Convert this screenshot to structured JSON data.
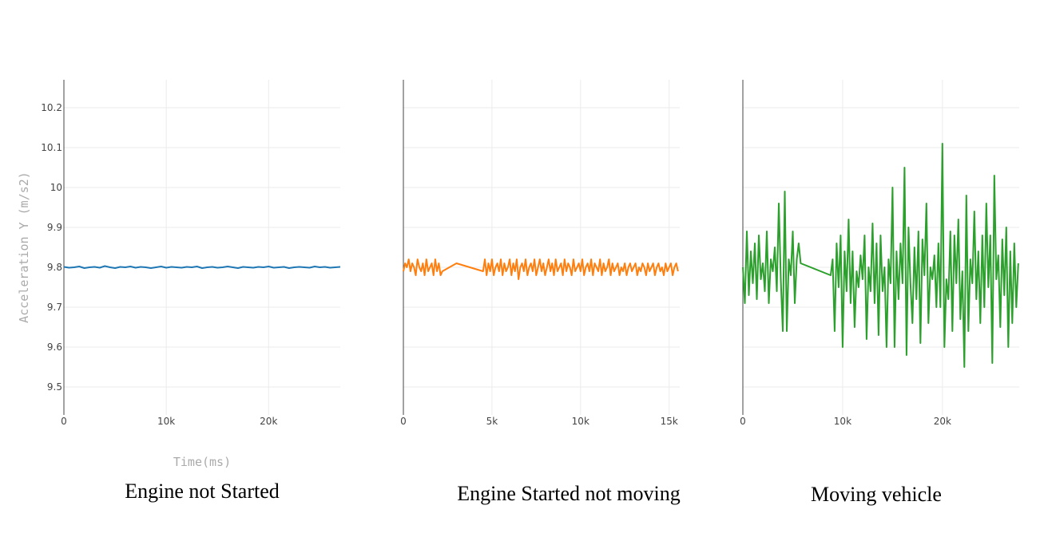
{
  "chart_data": [
    {
      "type": "line",
      "caption": "Engine not Started",
      "xlabel": "Time(ms)",
      "ylabel": "Acceleration Y (m/s2)",
      "xlim": [
        0,
        27000
      ],
      "ylim": [
        9.43,
        10.27
      ],
      "xticks": [
        {
          "v": 0,
          "label": "0"
        },
        {
          "v": 10000,
          "label": "10k"
        },
        {
          "v": 20000,
          "label": "20k"
        }
      ],
      "yticks": [
        {
          "v": 9.5,
          "label": "9.5"
        },
        {
          "v": 9.6,
          "label": "9.6"
        },
        {
          "v": 9.7,
          "label": "9.7"
        },
        {
          "v": 9.8,
          "label": "9.8"
        },
        {
          "v": 9.9,
          "label": "9.9"
        },
        {
          "v": 10,
          "label": "10"
        },
        {
          "v": 10.1,
          "label": "10.1"
        },
        {
          "v": 10.2,
          "label": "10.2"
        }
      ],
      "color": "#1f77b4",
      "series": [
        {
          "x": [
            0,
            500,
            1000,
            1500,
            2000,
            2500,
            3000,
            3500,
            4000,
            4500,
            5000,
            5500,
            6000,
            6500,
            7000,
            7500,
            8000,
            8500,
            9000,
            9500,
            10000,
            10500,
            11000,
            11500,
            12000,
            12500,
            13000,
            13500,
            14000,
            14500,
            15000,
            15500,
            16000,
            16500,
            17000,
            17500,
            18000,
            18500,
            19000,
            19500,
            20000,
            20500,
            21000,
            21500,
            22000,
            22500,
            23000,
            23500,
            24000,
            24500,
            25000,
            25500,
            26000,
            26500,
            27000
          ],
          "y": [
            9.801,
            9.799,
            9.8,
            9.802,
            9.798,
            9.8,
            9.801,
            9.799,
            9.803,
            9.8,
            9.798,
            9.801,
            9.8,
            9.802,
            9.799,
            9.801,
            9.8,
            9.798,
            9.8,
            9.802,
            9.799,
            9.801,
            9.8,
            9.799,
            9.801,
            9.8,
            9.802,
            9.798,
            9.8,
            9.801,
            9.799,
            9.8,
            9.802,
            9.8,
            9.798,
            9.801,
            9.8,
            9.799,
            9.801,
            9.8,
            9.802,
            9.799,
            9.8,
            9.801,
            9.798,
            9.8,
            9.801,
            9.8,
            9.799,
            9.802,
            9.8,
            9.801,
            9.799,
            9.8,
            9.801
          ]
        }
      ]
    },
    {
      "type": "line",
      "caption": "Engine Started not moving",
      "xlim": [
        0,
        15600
      ],
      "ylim": [
        9.43,
        10.27
      ],
      "xticks": [
        {
          "v": 0,
          "label": "0"
        },
        {
          "v": 5000,
          "label": "5k"
        },
        {
          "v": 10000,
          "label": "10k"
        },
        {
          "v": 15000,
          "label": "15k"
        }
      ],
      "color": "#ff7f0e",
      "series": [
        {
          "x": [
            0,
            100,
            200,
            300,
            400,
            500,
            600,
            700,
            800,
            900,
            1000,
            1100,
            1200,
            1300,
            1400,
            1500,
            1600,
            1700,
            1800,
            1900,
            2000,
            2100,
            2200,
            3000,
            4500,
            4600,
            4700,
            4800,
            4900,
            5000,
            5100,
            5200,
            5300,
            5400,
            5500,
            5600,
            5700,
            5800,
            5900,
            6000,
            6100,
            6200,
            6300,
            6400,
            6500,
            6600,
            6700,
            6800,
            6900,
            7000,
            7100,
            7200,
            7300,
            7400,
            7500,
            7600,
            7700,
            7800,
            7900,
            8000,
            8100,
            8200,
            8300,
            8400,
            8500,
            8600,
            8700,
            8800,
            8900,
            9000,
            9100,
            9200,
            9300,
            9400,
            9500,
            9600,
            9700,
            9800,
            9900,
            10000,
            10100,
            10200,
            10300,
            10400,
            10500,
            10600,
            10700,
            10800,
            10900,
            11000,
            11100,
            11200,
            11300,
            11400,
            11500,
            11600,
            11700,
            11800,
            11900,
            12000,
            12100,
            12200,
            12300,
            12400,
            12500,
            12600,
            12700,
            12800,
            12900,
            13000,
            13100,
            13200,
            13300,
            13400,
            13500,
            13600,
            13700,
            13800,
            13900,
            14000,
            14100,
            14200,
            14300,
            14400,
            14500,
            14600,
            14700,
            14800,
            14900,
            15000,
            15100,
            15200,
            15300,
            15400,
            15500
          ],
          "y": [
            9.79,
            9.81,
            9.8,
            9.82,
            9.79,
            9.81,
            9.8,
            9.78,
            9.82,
            9.8,
            9.79,
            9.81,
            9.78,
            9.82,
            9.79,
            9.8,
            9.81,
            9.78,
            9.82,
            9.79,
            9.81,
            9.78,
            9.79,
            9.81,
            9.79,
            9.82,
            9.78,
            9.81,
            9.79,
            9.82,
            9.78,
            9.8,
            9.81,
            9.79,
            9.82,
            9.78,
            9.81,
            9.79,
            9.8,
            9.82,
            9.78,
            9.81,
            9.79,
            9.82,
            9.77,
            9.8,
            9.81,
            9.79,
            9.82,
            9.78,
            9.8,
            9.81,
            9.79,
            9.82,
            9.78,
            9.8,
            9.82,
            9.79,
            9.81,
            9.78,
            9.8,
            9.82,
            9.79,
            9.81,
            9.78,
            9.82,
            9.79,
            9.8,
            9.81,
            9.78,
            9.82,
            9.79,
            9.81,
            9.8,
            9.78,
            9.82,
            9.79,
            9.8,
            9.81,
            9.79,
            9.82,
            9.78,
            9.8,
            9.81,
            9.79,
            9.82,
            9.78,
            9.81,
            9.8,
            9.79,
            9.82,
            9.78,
            9.81,
            9.79,
            9.8,
            9.82,
            9.78,
            9.81,
            9.79,
            9.8,
            9.81,
            9.78,
            9.8,
            9.79,
            9.81,
            9.78,
            9.8,
            9.81,
            9.79,
            9.8,
            9.81,
            9.78,
            9.8,
            9.79,
            9.81,
            9.8,
            9.78,
            9.81,
            9.79,
            9.8,
            9.81,
            9.78,
            9.8,
            9.81,
            9.79,
            9.8,
            9.78,
            9.81,
            9.79,
            9.8,
            9.81,
            9.78,
            9.8,
            9.81,
            9.79
          ]
        }
      ]
    },
    {
      "type": "line",
      "caption": "Moving vehicle",
      "xlim": [
        0,
        27700
      ],
      "ylim": [
        9.43,
        10.27
      ],
      "xticks": [
        {
          "v": 0,
          "label": "0"
        },
        {
          "v": 10000,
          "label": "10k"
        },
        {
          "v": 20000,
          "label": "20k"
        }
      ],
      "color": "#2ca02c",
      "series": [
        {
          "x": [
            0,
            200,
            400,
            600,
            800,
            1000,
            1200,
            1400,
            1600,
            1800,
            2000,
            2200,
            2400,
            2600,
            2800,
            3000,
            3200,
            3400,
            3600,
            3800,
            4000,
            4200,
            4400,
            4600,
            4800,
            5000,
            5200,
            5400,
            5600,
            5800,
            8800,
            9000,
            9200,
            9400,
            9600,
            9800,
            10000,
            10200,
            10400,
            10600,
            10800,
            11000,
            11200,
            11400,
            11600,
            11800,
            12000,
            12200,
            12400,
            12600,
            12800,
            13000,
            13200,
            13400,
            13600,
            13800,
            14000,
            14200,
            14400,
            14600,
            14800,
            15000,
            15200,
            15400,
            15600,
            15800,
            16000,
            16200,
            16400,
            16600,
            16800,
            17000,
            17200,
            17400,
            17600,
            17800,
            18000,
            18200,
            18400,
            18600,
            18800,
            19000,
            19200,
            19400,
            19600,
            19800,
            20000,
            20200,
            20400,
            20600,
            20800,
            21000,
            21200,
            21400,
            21600,
            21800,
            22000,
            22200,
            22400,
            22600,
            22800,
            23000,
            23200,
            23400,
            23600,
            23800,
            24000,
            24200,
            24400,
            24600,
            24800,
            25000,
            25200,
            25400,
            25600,
            25800,
            26000,
            26200,
            26400,
            26600,
            26800,
            27000,
            27200,
            27400,
            27600
          ],
          "y": [
            9.8,
            9.71,
            9.89,
            9.73,
            9.84,
            9.76,
            9.86,
            9.72,
            9.88,
            9.77,
            9.81,
            9.74,
            9.89,
            9.71,
            9.82,
            9.79,
            9.85,
            9.74,
            9.96,
            9.77,
            9.64,
            9.99,
            9.64,
            9.82,
            9.78,
            9.89,
            9.71,
            9.82,
            9.86,
            9.81,
            9.78,
            9.82,
            9.64,
            9.86,
            9.75,
            9.88,
            9.6,
            9.84,
            9.74,
            9.92,
            9.71,
            9.84,
            9.65,
            9.79,
            9.75,
            9.83,
            9.77,
            9.88,
            9.62,
            9.8,
            9.74,
            9.91,
            9.71,
            9.86,
            9.63,
            9.88,
            9.74,
            9.8,
            9.6,
            9.82,
            9.76,
            10.0,
            9.6,
            9.84,
            9.72,
            9.86,
            9.76,
            10.05,
            9.58,
            9.9,
            9.76,
            9.66,
            9.85,
            9.72,
            9.89,
            9.61,
            9.87,
            9.78,
            9.96,
            9.66,
            9.8,
            9.77,
            9.83,
            9.7,
            9.86,
            9.7,
            10.11,
            9.6,
            9.77,
            9.72,
            9.89,
            9.64,
            9.88,
            9.76,
            9.92,
            9.67,
            9.79,
            9.55,
            9.98,
            9.64,
            9.82,
            9.76,
            9.94,
            9.72,
            9.84,
            9.66,
            9.88,
            9.7,
            9.96,
            9.75,
            9.88,
            9.56,
            10.03,
            9.77,
            9.83,
            9.65,
            9.87,
            9.73,
            9.9,
            9.6,
            9.84,
            9.66,
            9.86,
            9.7,
            9.81
          ]
        }
      ]
    }
  ]
}
